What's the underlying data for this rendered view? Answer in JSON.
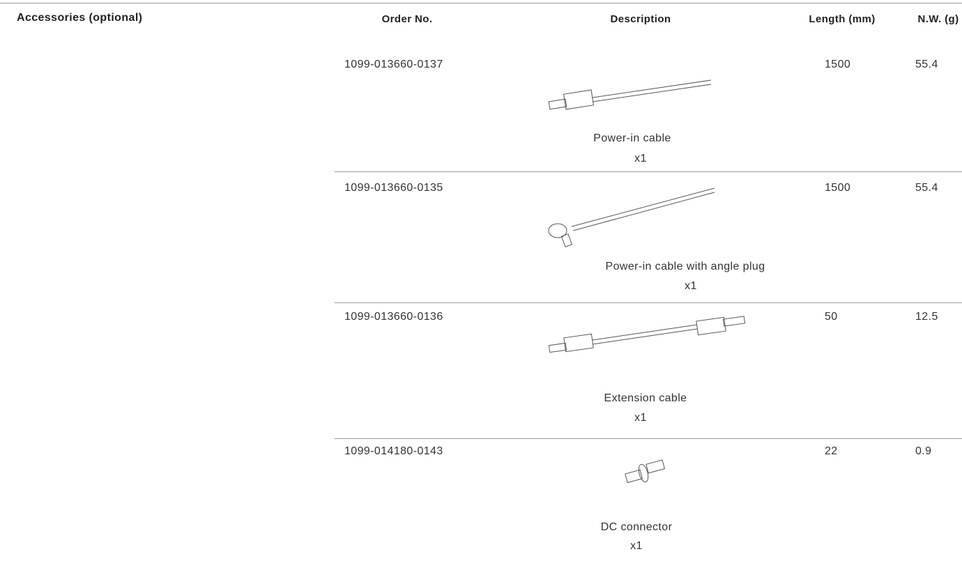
{
  "section_title": "Accessories (optional)",
  "table": {
    "headers": [
      "Order No.",
      "Description",
      "Length (mm)",
      "N.W. (g)"
    ],
    "rows": [
      {
        "order_no": "1099-013660-0137",
        "description": "Power-in cable",
        "quantity": "x1",
        "length": 1500,
        "weight": 55.4
      },
      {
        "order_no": "1099-013660-0135",
        "description": "Power-in cable with angle plug",
        "quantity": "x1",
        "length": 1500,
        "weight": 55.4
      },
      {
        "order_no": "1099-013660-0136",
        "description": "Extension cable",
        "quantity": "x1",
        "length": 50,
        "weight": 12.5
      },
      {
        "order_no": "1099-014180-0143",
        "description": "DC connector",
        "quantity": "x1",
        "length": 22,
        "weight": 0.9
      }
    ]
  }
}
